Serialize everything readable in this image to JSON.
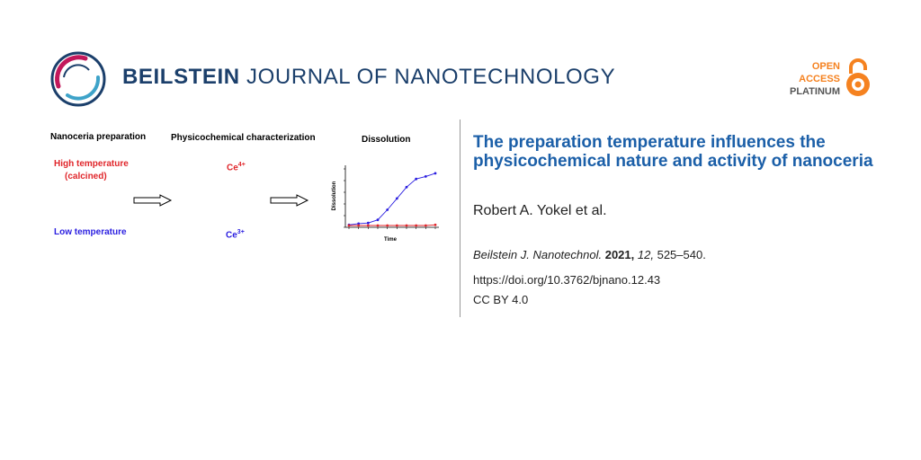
{
  "header": {
    "journal_bold": "BEILSTEIN",
    "journal_rest": "JOURNAL OF NANOTECHNOLOGY",
    "badge": {
      "line1": "OPEN",
      "line2": "ACCESS",
      "line3": "PLATINUM"
    },
    "logo_icon": "beilstein-ring-icon",
    "open_access_icon": "open-lock-icon"
  },
  "graphical_abstract": {
    "col1_heading": "Nanoceria preparation",
    "col2_heading": "Physicochemical characterization",
    "col3_heading": "Dissolution",
    "high_temp_line1": "High temperature",
    "high_temp_line2": "(calcined)",
    "low_temp": "Low temperature",
    "ce_high": "Ce",
    "ce_high_charge": "4+",
    "ce_low": "Ce",
    "ce_low_charge": "3+",
    "colors": {
      "red": "#e0262b",
      "blue": "#2a1ee0"
    }
  },
  "chart_data": {
    "type": "line",
    "xlabel": "Time",
    "ylabel": "Dissolution",
    "x": [
      0,
      1,
      2,
      3,
      4,
      5,
      6,
      7,
      8,
      9
    ],
    "series": [
      {
        "color": "#2a1ee0",
        "values": [
          0.1,
          0.3,
          0.4,
          0.9,
          2.5,
          4.3,
          6.1,
          7.4,
          7.8,
          8.3
        ]
      },
      {
        "color": "#e0262b",
        "values": [
          0.0,
          0.0,
          0.0,
          0.0,
          0.0,
          0.0,
          0.0,
          0.0,
          0.0,
          0.1
        ]
      }
    ],
    "ylim": [
      0,
      9
    ],
    "grid": false
  },
  "article": {
    "title": "The preparation temperature influences the physicochemical nature and activity of nanoceria",
    "authors": "Robert A. Yokel et al.",
    "journal_abbrev": "Beilstein J. Nanotechnol.",
    "year": "2021,",
    "volume": "12,",
    "pages": "525–540.",
    "doi": "https://doi.org/10.3762/bjnano.12.43",
    "license": "CC BY 4.0"
  }
}
